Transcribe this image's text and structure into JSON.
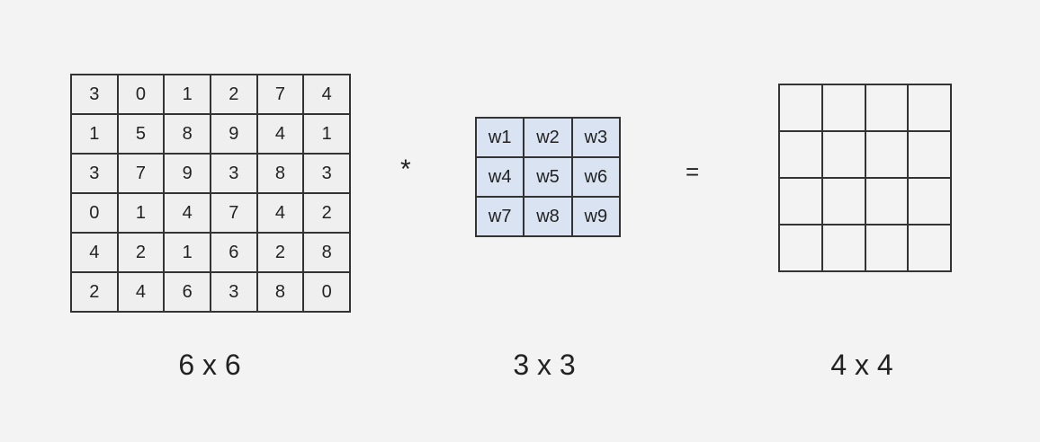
{
  "input_matrix": [
    [
      "3",
      "0",
      "1",
      "2",
      "7",
      "4"
    ],
    [
      "1",
      "5",
      "8",
      "9",
      "4",
      "1"
    ],
    [
      "3",
      "7",
      "9",
      "3",
      "8",
      "3"
    ],
    [
      "0",
      "1",
      "4",
      "7",
      "4",
      "2"
    ],
    [
      "4",
      "2",
      "1",
      "6",
      "2",
      "8"
    ],
    [
      "2",
      "4",
      "6",
      "3",
      "8",
      "0"
    ]
  ],
  "kernel_matrix": [
    [
      "w1",
      "w2",
      "w3"
    ],
    [
      "w4",
      "w5",
      "w6"
    ],
    [
      "w7",
      "w8",
      "w9"
    ]
  ],
  "output_matrix": [
    [
      "",
      "",
      "",
      ""
    ],
    [
      "",
      "",
      "",
      ""
    ],
    [
      "",
      "",
      "",
      ""
    ],
    [
      "",
      "",
      "",
      ""
    ]
  ],
  "operators": {
    "convolve": "*",
    "equals": "="
  },
  "labels": {
    "input": "6 x 6",
    "kernel": "3 x 3",
    "output": "4 x 4"
  },
  "colors": {
    "kernel_fill": "#d9e3f2",
    "input_fill": "#efefef",
    "background": "#f3f3f3"
  }
}
